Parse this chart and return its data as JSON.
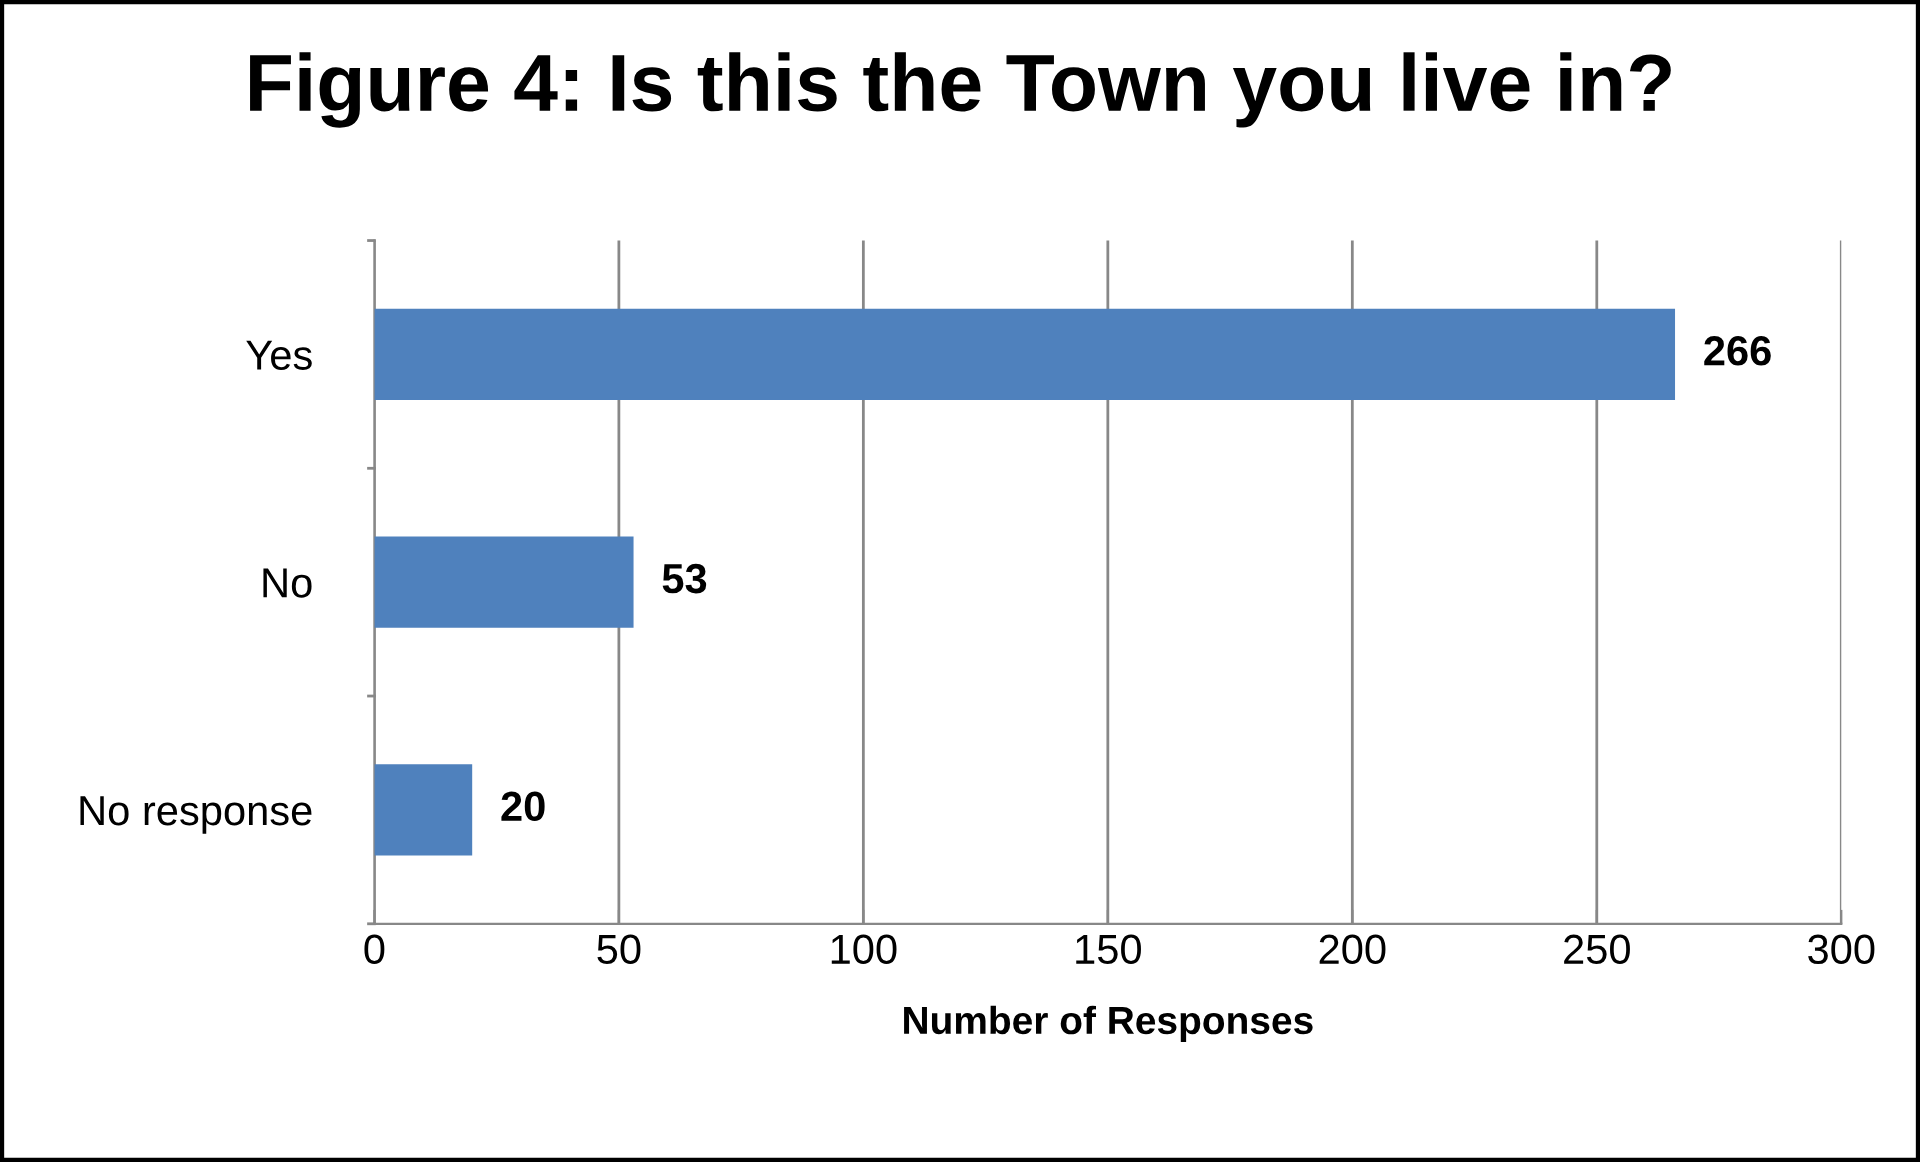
{
  "chart_data": {
    "type": "bar",
    "orientation": "horizontal",
    "title": "Figure 4: Is this the Town you live in?",
    "xlabel": "Number of Responses",
    "categories": [
      "Yes",
      "No",
      "No response"
    ],
    "values": [
      266,
      53,
      20
    ],
    "color": "#4f81bd",
    "xlim": [
      0,
      300
    ],
    "xticks": [
      0,
      50,
      100,
      150,
      200,
      250,
      300
    ],
    "grid": "x",
    "data_labels": true,
    "legend": false
  }
}
